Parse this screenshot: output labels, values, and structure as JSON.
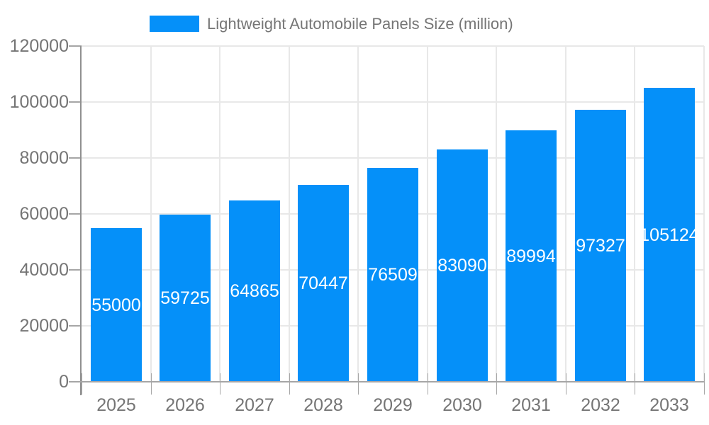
{
  "legend": {
    "label": "Lightweight Automobile Panels Size (million)"
  },
  "chart_data": {
    "type": "bar",
    "title": "Lightweight Automobile Panels Size (million)",
    "categories": [
      "2025",
      "2026",
      "2027",
      "2028",
      "2029",
      "2030",
      "2031",
      "2032",
      "2033"
    ],
    "series": [
      {
        "name": "Lightweight Automobile Panels Size (million)",
        "values": [
          55000,
          59725,
          64865,
          70447,
          76509,
          83090,
          89994,
          97327,
          105124
        ]
      }
    ],
    "ylim": [
      0,
      120000
    ],
    "yticks": [
      0,
      20000,
      40000,
      60000,
      80000,
      100000,
      120000
    ],
    "grid": true,
    "legend_position": "top",
    "value_labels_inside_bars": true,
    "colors": {
      "bar": "#0590F9",
      "axis_text": "#757575",
      "gridline": "#e8e8e8",
      "tick": "#a6a6a6",
      "y_axis_line": "#909090",
      "x_axis_line": "#a6a6a6",
      "value_label": "#ffffff",
      "background": "#ffffff"
    }
  }
}
